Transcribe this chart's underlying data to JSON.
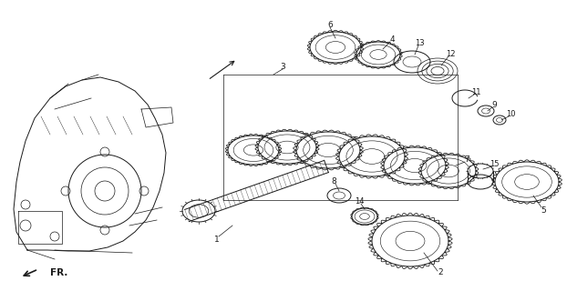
{
  "background_color": "#ffffff",
  "fig_width": 6.22,
  "fig_height": 3.2,
  "dpi": 100,
  "line_color": "#1a1a1a",
  "label_fontsize": 6.5,
  "fr_fontsize": 7.5
}
